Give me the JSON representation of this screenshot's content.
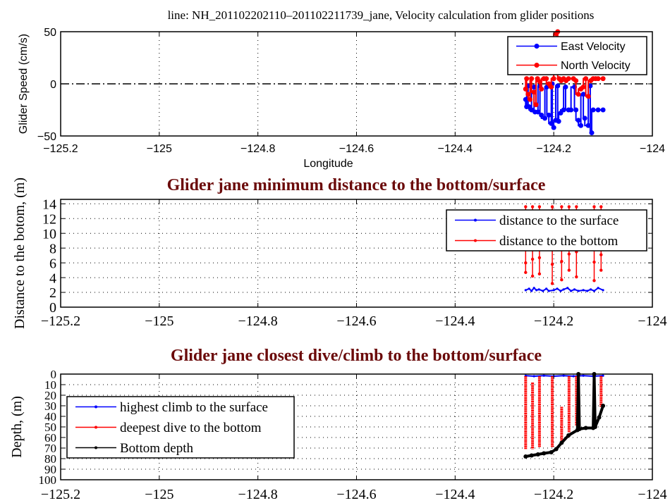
{
  "chart_data": [
    {
      "type": "line",
      "title": "line: NH_201102202110–201102211739_jane, Velocity calculation from glider positions",
      "xlabel": "Longitude",
      "ylabel": "Glider Speed (cm/s)",
      "xlim": [
        -125.2,
        -124
      ],
      "ylim": [
        -50,
        50
      ],
      "xticks": [
        "-125.2",
        "-125",
        "-124.8",
        "-124.6",
        "-124.4",
        "-124.2",
        "-124"
      ],
      "xtick_values": [
        -125.2,
        -125,
        -124.8,
        -124.6,
        -124.4,
        -124.2,
        -124
      ],
      "yticks": [
        "-50",
        "0",
        "50"
      ],
      "ytick_values": [
        -50,
        0,
        50
      ],
      "grid": "vertical dotted",
      "zero_line": true,
      "legend_position": "top-right",
      "series": [
        {
          "name": "East Velocity",
          "color": "#0000ff",
          "points": [
            [
              -124.257,
              -15
            ],
            [
              -124.255,
              -22
            ],
            [
              -124.252,
              -2
            ],
            [
              -124.25,
              -22
            ],
            [
              -124.245,
              -25
            ],
            [
              -124.24,
              -3
            ],
            [
              -124.238,
              -27
            ],
            [
              -124.232,
              -27
            ],
            [
              -124.228,
              -2
            ],
            [
              -124.225,
              -30
            ],
            [
              -124.218,
              -33
            ],
            [
              -124.214,
              -3
            ],
            [
              -124.21,
              -30
            ],
            [
              -124.205,
              -38
            ],
            [
              -124.203,
              0
            ],
            [
              -124.2,
              -42
            ],
            [
              -124.196,
              -35
            ],
            [
              -124.192,
              -2
            ],
            [
              -124.19,
              -36
            ],
            [
              -124.186,
              -28
            ],
            [
              -124.18,
              -25
            ],
            [
              -124.176,
              -3
            ],
            [
              -124.17,
              -25
            ],
            [
              -124.165,
              -25
            ],
            [
              -124.158,
              -3
            ],
            [
              -124.155,
              -25
            ],
            [
              -124.15,
              -35
            ],
            [
              -124.145,
              -40
            ],
            [
              -124.14,
              -10
            ],
            [
              -124.137,
              -33
            ],
            [
              -124.13,
              -40
            ],
            [
              -124.126,
              -2
            ],
            [
              -124.123,
              -47
            ],
            [
              -124.12,
              -25
            ],
            [
              -124.11,
              -25
            ],
            [
              -124.1,
              -25
            ]
          ]
        },
        {
          "name": "North Velocity",
          "color": "#ff0000",
          "points": [
            [
              -124.257,
              -5
            ],
            [
              -124.255,
              5
            ],
            [
              -124.252,
              -10
            ],
            [
              -124.248,
              -15
            ],
            [
              -124.245,
              5
            ],
            [
              -124.24,
              -8
            ],
            [
              -124.236,
              -20
            ],
            [
              -124.233,
              5
            ],
            [
              -124.228,
              2
            ],
            [
              -124.225,
              -5
            ],
            [
              -124.22,
              5
            ],
            [
              -124.215,
              5
            ],
            [
              -124.21,
              0
            ],
            [
              -124.205,
              -3
            ],
            [
              -124.2,
              5
            ],
            [
              -124.195,
              48
            ],
            [
              -124.192,
              50
            ],
            [
              -124.189,
              5
            ],
            [
              -124.185,
              3
            ],
            [
              -124.18,
              5
            ],
            [
              -124.175,
              3
            ],
            [
              -124.17,
              5
            ],
            [
              -124.16,
              5
            ],
            [
              -124.155,
              3
            ],
            [
              -124.15,
              -10
            ],
            [
              -124.145,
              -5
            ],
            [
              -124.14,
              -3
            ],
            [
              -124.135,
              5
            ],
            [
              -124.13,
              -12
            ],
            [
              -124.125,
              3
            ],
            [
              -124.12,
              5
            ],
            [
              -124.115,
              5
            ],
            [
              -124.11,
              5
            ],
            [
              -124.1,
              5
            ]
          ]
        }
      ]
    },
    {
      "type": "line",
      "title": "Glider jane minimum distance to the bottom/surface",
      "xlabel": "",
      "ylabel": "Distance to the botom, (m)",
      "xlim": [
        -125.2,
        -124
      ],
      "ylim": [
        0,
        14.6
      ],
      "xticks": [
        "-125.2",
        "-125",
        "-124.8",
        "-124.6",
        "-124.4",
        "-124.2",
        "-124"
      ],
      "xtick_values": [
        -125.2,
        -125,
        -124.8,
        -124.6,
        -124.4,
        -124.2,
        -124
      ],
      "yticks": [
        "0",
        "2",
        "4",
        "6",
        "8",
        "10",
        "12",
        "14"
      ],
      "ytick_values": [
        0,
        2,
        4,
        6,
        8,
        10,
        12,
        14
      ],
      "grid": "dotted",
      "legend_position": "top-right",
      "series": [
        {
          "name": "distance to the surface",
          "color": "#0000ff",
          "points": [
            [
              -124.257,
              2.3
            ],
            [
              -124.25,
              2.5
            ],
            [
              -124.245,
              2.2
            ],
            [
              -124.24,
              2.6
            ],
            [
              -124.235,
              2.3
            ],
            [
              -124.23,
              2.4
            ],
            [
              -124.222,
              2.2
            ],
            [
              -124.215,
              2.5
            ],
            [
              -124.21,
              2.2
            ],
            [
              -124.2,
              2.3
            ],
            [
              -124.193,
              2.5
            ],
            [
              -124.186,
              2.2
            ],
            [
              -124.18,
              2.4
            ],
            [
              -124.172,
              2.6
            ],
            [
              -124.165,
              2.2
            ],
            [
              -124.158,
              2.4
            ],
            [
              -124.15,
              2.2
            ],
            [
              -124.14,
              2.3
            ],
            [
              -124.132,
              2.2
            ],
            [
              -124.125,
              2.4
            ],
            [
              -124.118,
              2.2
            ],
            [
              -124.11,
              2.6
            ],
            [
              -124.1,
              2.3
            ]
          ]
        },
        {
          "name": "distance to the bottom",
          "color": "#ff0000",
          "stems": [
            {
              "lon": -124.257,
              "values": [
                13.6,
                8,
                6,
                4.7
              ]
            },
            {
              "lon": -124.243,
              "values": [
                13.6,
                8,
                6.5,
                4.2
              ]
            },
            {
              "lon": -124.229,
              "values": [
                13.6,
                8,
                6.7,
                4.5
              ]
            },
            {
              "lon": -124.203,
              "values": [
                13.6,
                8,
                5.8,
                3.2
              ]
            },
            {
              "lon": -124.184,
              "values": [
                13.6,
                8,
                6.2,
                3.7
              ]
            },
            {
              "lon": -124.169,
              "values": [
                13.6,
                8,
                7.2,
                5.0
              ]
            },
            {
              "lon": -124.154,
              "values": [
                13.6,
                8,
                7.5,
                4.1
              ]
            },
            {
              "lon": -124.118,
              "values": [
                13.6,
                8,
                6.1,
                3.6
              ]
            },
            {
              "lon": -124.104,
              "values": [
                13.6,
                8,
                7.1,
                5.0
              ]
            }
          ]
        }
      ]
    },
    {
      "type": "line",
      "title": "Glider jane closest dive/climb to the bottom/surface",
      "xlabel": "",
      "ylabel": "Depth, (m)",
      "xlim": [
        -125.2,
        -124
      ],
      "ylim": [
        100,
        0
      ],
      "xticks": [
        "-125.2",
        "-125",
        "-124.8",
        "-124.6",
        "-124.4",
        "-124.2",
        "-124"
      ],
      "xtick_values": [
        -125.2,
        -125,
        -124.8,
        -124.6,
        -124.4,
        -124.2,
        -124
      ],
      "yticks": [
        "0",
        "10",
        "20",
        "30",
        "40",
        "50",
        "60",
        "70",
        "80",
        "90",
        "100"
      ],
      "ytick_values": [
        0,
        10,
        20,
        30,
        40,
        50,
        60,
        70,
        80,
        90,
        100
      ],
      "grid": "dotted",
      "legend_position": "left",
      "series": [
        {
          "name": "highest climb to the surface",
          "color": "#0000ff",
          "points": [
            [
              -124.257,
              1.5
            ],
            [
              -124.24,
              2
            ],
            [
              -124.22,
              1.5
            ],
            [
              -124.2,
              2
            ],
            [
              -124.18,
              1.5
            ],
            [
              -124.16,
              2
            ],
            [
              -124.14,
              1.5
            ],
            [
              -124.12,
              2
            ],
            [
              -124.1,
              1.5
            ]
          ]
        },
        {
          "name": "deepest dive to the bottom",
          "color": "#ff0000",
          "stems": [
            {
              "lon": -124.257,
              "top": 2,
              "bottom": 71
            },
            {
              "lon": -124.243,
              "top": 8,
              "bottom": 71
            },
            {
              "lon": -124.229,
              "top": 2,
              "bottom": 69
            },
            {
              "lon": -124.203,
              "top": 2,
              "bottom": 69
            },
            {
              "lon": -124.184,
              "top": 31,
              "bottom": 63
            },
            {
              "lon": -124.169,
              "top": 2,
              "bottom": 55
            },
            {
              "lon": -124.154,
              "top": 2,
              "bottom": 49
            },
            {
              "lon": -124.118,
              "top": 16,
              "bottom": 46
            },
            {
              "lon": -124.104,
              "top": 2,
              "bottom": 31
            }
          ]
        },
        {
          "name": "Bottom depth",
          "color": "#000000",
          "points": [
            [
              -124.257,
              78
            ],
            [
              -124.245,
              77
            ],
            [
              -124.232,
              76
            ],
            [
              -124.22,
              75
            ],
            [
              -124.205,
              74
            ],
            [
              -124.195,
              71
            ],
            [
              -124.184,
              65
            ],
            [
              -124.17,
              58
            ],
            [
              -124.152,
              53
            ],
            [
              -124.15,
              0
            ],
            [
              -124.148,
              52
            ],
            [
              -124.135,
              51
            ],
            [
              -124.12,
              51
            ],
            [
              -124.118,
              0
            ],
            [
              -124.116,
              50
            ],
            [
              -124.108,
              41
            ],
            [
              -124.1,
              30
            ]
          ]
        }
      ]
    }
  ]
}
